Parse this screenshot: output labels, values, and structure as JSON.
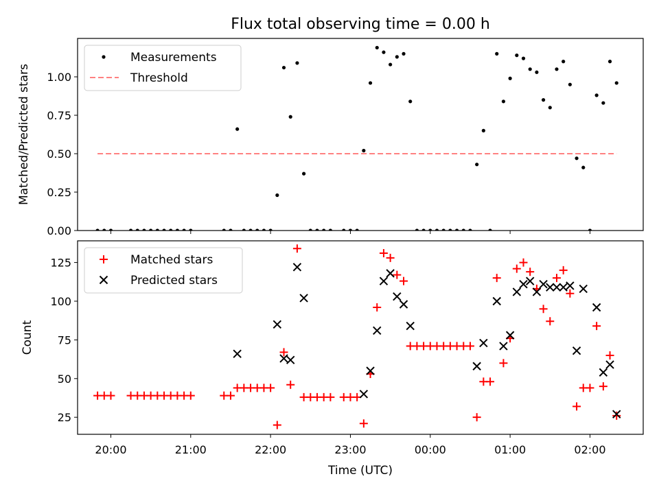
{
  "title": "Flux total observing time = 0.00 h",
  "xlabel": "Time (UTC)",
  "x_ticks": [
    "20:00",
    "21:00",
    "22:00",
    "23:00",
    "00:00",
    "01:00",
    "02:00"
  ],
  "chart_data": [
    {
      "type": "scatter",
      "ylabel": "Matched/Predicted stars",
      "ylim": [
        0,
        1.25
      ],
      "xlim": [
        "19:35",
        "02:40"
      ],
      "y_ticks": [
        "0.00",
        "0.25",
        "0.50",
        "0.75",
        "1.00"
      ],
      "grid": false,
      "legend_position": "top-left",
      "legend": [
        "Measurements",
        "Threshold"
      ],
      "series": [
        {
          "name": "Measurements",
          "color": "#000000",
          "marker": "dot",
          "points": [
            [
              "19:50",
              0
            ],
            [
              "19:55",
              0
            ],
            [
              "20:00",
              0
            ],
            [
              "20:15",
              0
            ],
            [
              "20:20",
              0
            ],
            [
              "20:25",
              0
            ],
            [
              "20:30",
              0
            ],
            [
              "20:35",
              0
            ],
            [
              "20:40",
              0
            ],
            [
              "20:45",
              0
            ],
            [
              "20:50",
              0
            ],
            [
              "20:55",
              0
            ],
            [
              "21:00",
              0
            ],
            [
              "21:25",
              0
            ],
            [
              "21:30",
              0
            ],
            [
              "21:35",
              0.66
            ],
            [
              "21:40",
              0
            ],
            [
              "21:45",
              0
            ],
            [
              "21:50",
              0
            ],
            [
              "21:55",
              0
            ],
            [
              "22:00",
              0
            ],
            [
              "22:05",
              0.23
            ],
            [
              "22:10",
              1.06
            ],
            [
              "22:15",
              0.74
            ],
            [
              "22:20",
              1.09
            ],
            [
              "22:25",
              0.37
            ],
            [
              "22:30",
              0
            ],
            [
              "22:35",
              0
            ],
            [
              "22:40",
              0
            ],
            [
              "22:45",
              0
            ],
            [
              "22:55",
              0
            ],
            [
              "23:00",
              0
            ],
            [
              "23:05",
              0
            ],
            [
              "23:10",
              0.52
            ],
            [
              "23:15",
              0.96
            ],
            [
              "23:20",
              1.19
            ],
            [
              "23:25",
              1.16
            ],
            [
              "23:30",
              1.08
            ],
            [
              "23:35",
              1.13
            ],
            [
              "23:40",
              1.15
            ],
            [
              "23:45",
              0.84
            ],
            [
              "23:50",
              0
            ],
            [
              "23:55",
              0
            ],
            [
              "00:00",
              0
            ],
            [
              "00:05",
              0
            ],
            [
              "00:10",
              0
            ],
            [
              "00:15",
              0
            ],
            [
              "00:20",
              0
            ],
            [
              "00:25",
              0
            ],
            [
              "00:30",
              0
            ],
            [
              "00:35",
              0.43
            ],
            [
              "00:40",
              0.65
            ],
            [
              "00:45",
              0
            ],
            [
              "00:50",
              1.15
            ],
            [
              "00:55",
              0.84
            ],
            [
              "01:00",
              0.99
            ],
            [
              "01:05",
              1.14
            ],
            [
              "01:10",
              1.12
            ],
            [
              "01:15",
              1.05
            ],
            [
              "01:20",
              1.03
            ],
            [
              "01:25",
              0.85
            ],
            [
              "01:30",
              0.8
            ],
            [
              "01:35",
              1.05
            ],
            [
              "01:40",
              1.1
            ],
            [
              "01:45",
              0.95
            ],
            [
              "01:50",
              0.47
            ],
            [
              "01:55",
              0.41
            ],
            [
              "02:00",
              0
            ],
            [
              "02:05",
              0.88
            ],
            [
              "02:10",
              0.83
            ],
            [
              "02:15",
              1.1
            ],
            [
              "02:20",
              0.96
            ]
          ]
        },
        {
          "name": "Threshold",
          "color": "#ff8080",
          "style": "dashed",
          "line": [
            [
              "19:50",
              0.5
            ],
            [
              "02:20",
              0.5
            ]
          ]
        }
      ]
    },
    {
      "type": "scatter",
      "ylabel": "Count",
      "ylim": [
        14,
        139
      ],
      "xlim": [
        "19:35",
        "02:40"
      ],
      "y_ticks": [
        "25",
        "50",
        "75",
        "100",
        "125"
      ],
      "grid": false,
      "legend_position": "top-left",
      "legend": [
        "Matched stars",
        "Predicted stars"
      ],
      "series": [
        {
          "name": "Matched stars",
          "color": "#ff0000",
          "marker": "plus",
          "points": [
            [
              "19:50",
              39
            ],
            [
              "19:55",
              39
            ],
            [
              "20:00",
              39
            ],
            [
              "20:15",
              39
            ],
            [
              "20:20",
              39
            ],
            [
              "20:25",
              39
            ],
            [
              "20:30",
              39
            ],
            [
              "20:35",
              39
            ],
            [
              "20:40",
              39
            ],
            [
              "20:45",
              39
            ],
            [
              "20:50",
              39
            ],
            [
              "20:55",
              39
            ],
            [
              "21:00",
              39
            ],
            [
              "21:25",
              39
            ],
            [
              "21:30",
              39
            ],
            [
              "21:35",
              44
            ],
            [
              "21:40",
              44
            ],
            [
              "21:45",
              44
            ],
            [
              "21:50",
              44
            ],
            [
              "21:55",
              44
            ],
            [
              "22:00",
              44
            ],
            [
              "22:05",
              20
            ],
            [
              "22:10",
              67
            ],
            [
              "22:15",
              46
            ],
            [
              "22:20",
              134
            ],
            [
              "22:25",
              38
            ],
            [
              "22:30",
              38
            ],
            [
              "22:35",
              38
            ],
            [
              "22:40",
              38
            ],
            [
              "22:45",
              38
            ],
            [
              "22:55",
              38
            ],
            [
              "23:00",
              38
            ],
            [
              "23:05",
              38
            ],
            [
              "23:10",
              21
            ],
            [
              "23:15",
              53
            ],
            [
              "23:20",
              96
            ],
            [
              "23:25",
              131
            ],
            [
              "23:30",
              128
            ],
            [
              "23:35",
              117
            ],
            [
              "23:40",
              113
            ],
            [
              "23:45",
              71
            ],
            [
              "23:50",
              71
            ],
            [
              "23:55",
              71
            ],
            [
              "00:00",
              71
            ],
            [
              "00:05",
              71
            ],
            [
              "00:10",
              71
            ],
            [
              "00:15",
              71
            ],
            [
              "00:20",
              71
            ],
            [
              "00:25",
              71
            ],
            [
              "00:30",
              71
            ],
            [
              "00:35",
              25
            ],
            [
              "00:40",
              48
            ],
            [
              "00:45",
              48
            ],
            [
              "00:50",
              115
            ],
            [
              "00:55",
              60
            ],
            [
              "01:00",
              76
            ],
            [
              "01:05",
              121
            ],
            [
              "01:10",
              125
            ],
            [
              "01:15",
              119
            ],
            [
              "01:20",
              108
            ],
            [
              "01:25",
              95
            ],
            [
              "01:30",
              87
            ],
            [
              "01:35",
              115
            ],
            [
              "01:40",
              120
            ],
            [
              "01:45",
              105
            ],
            [
              "01:50",
              32
            ],
            [
              "01:55",
              44
            ],
            [
              "02:00",
              44
            ],
            [
              "02:05",
              84
            ],
            [
              "02:10",
              45
            ],
            [
              "02:15",
              65
            ],
            [
              "02:20",
              26
            ]
          ]
        },
        {
          "name": "Predicted stars",
          "color": "#000000",
          "marker": "x",
          "points": [
            [
              "21:35",
              66
            ],
            [
              "22:05",
              85
            ],
            [
              "22:10",
              63
            ],
            [
              "22:15",
              62
            ],
            [
              "22:20",
              122
            ],
            [
              "22:25",
              102
            ],
            [
              "23:10",
              40
            ],
            [
              "23:15",
              55
            ],
            [
              "23:20",
              81
            ],
            [
              "23:25",
              113
            ],
            [
              "23:30",
              118
            ],
            [
              "23:35",
              103
            ],
            [
              "23:40",
              98
            ],
            [
              "23:45",
              84
            ],
            [
              "00:35",
              58
            ],
            [
              "00:40",
              73
            ],
            [
              "00:50",
              100
            ],
            [
              "00:55",
              71
            ],
            [
              "01:00",
              78
            ],
            [
              "01:05",
              106
            ],
            [
              "01:10",
              111
            ],
            [
              "01:15",
              113
            ],
            [
              "01:20",
              106
            ],
            [
              "01:25",
              111
            ],
            [
              "01:30",
              109
            ],
            [
              "01:35",
              109
            ],
            [
              "01:40",
              109
            ],
            [
              "01:45",
              110
            ],
            [
              "01:50",
              68
            ],
            [
              "01:55",
              108
            ],
            [
              "02:05",
              96
            ],
            [
              "02:10",
              54
            ],
            [
              "02:15",
              59
            ],
            [
              "02:20",
              27
            ]
          ]
        }
      ]
    }
  ]
}
